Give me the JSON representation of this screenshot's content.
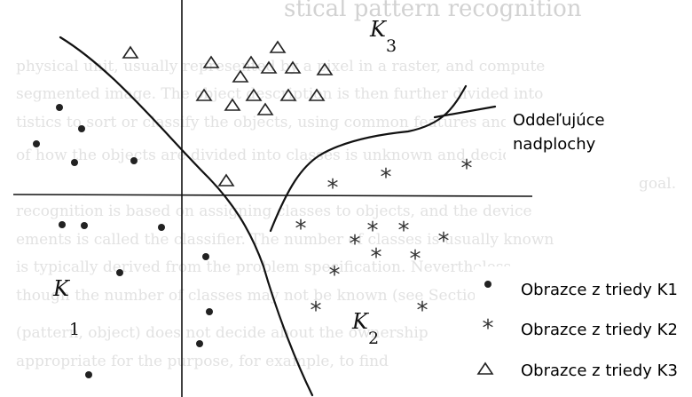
{
  "background_page": {
    "heading": "stical pattern recognition",
    "lines": [
      "physical unit, usually represented by a pixel in a raster, and compute",
      "segmented image. The object description is then further divided into",
      "tistics to sort or classify the objects, using common features and sets",
      "of how the objects are divided into classes is unknown and decided",
      "goal.",
      "recognition is based on assigning classes to objects, and the device",
      "ements is called the classifier. The number of classes is usually known",
      "is typically derived from the problem specification. Nevertheless,",
      "though the number of classes may not be known (see Section 7.",
      "(pattern, object) does not decide about the ownership",
      "appropriate for the purpose, for example, to find"
    ]
  },
  "class_regions": [
    {
      "letter": "K",
      "index": "3"
    },
    {
      "letter": "K",
      "index": "1"
    },
    {
      "letter": "K",
      "index": "2"
    }
  ],
  "callout": {
    "line1": "Oddeľujúce",
    "line2": "nadplochy"
  },
  "legend": {
    "items": [
      {
        "symbol": "dot",
        "label": "Obrazce z triedy K1"
      },
      {
        "symbol": "star",
        "label": "Obrazce z triedy K2",
        "glyph": "*"
      },
      {
        "symbol": "triangle",
        "label": "Obrazce z triedy K3"
      }
    ]
  },
  "star_glyph": "*"
}
